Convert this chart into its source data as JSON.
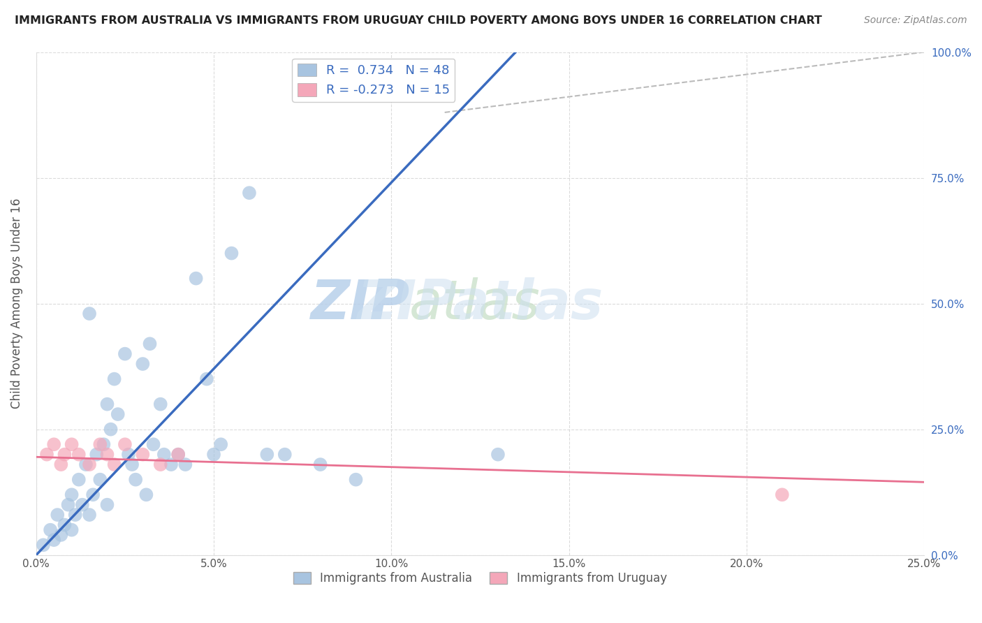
{
  "title": "IMMIGRANTS FROM AUSTRALIA VS IMMIGRANTS FROM URUGUAY CHILD POVERTY AMONG BOYS UNDER 16 CORRELATION CHART",
  "source": "Source: ZipAtlas.com",
  "ylabel": "Child Poverty Among Boys Under 16",
  "xlim": [
    0.0,
    0.25
  ],
  "ylim": [
    0.0,
    1.0
  ],
  "xticks": [
    0.0,
    0.05,
    0.1,
    0.15,
    0.2,
    0.25
  ],
  "yticks": [
    0.0,
    0.25,
    0.5,
    0.75,
    1.0
  ],
  "xticklabels": [
    "0.0%",
    "5.0%",
    "10.0%",
    "15.0%",
    "20.0%",
    "25.0%"
  ],
  "yticklabels": [
    "",
    "",
    "",
    "",
    ""
  ],
  "yticklabels_right": [
    "0.0%",
    "25.0%",
    "50.0%",
    "75.0%",
    "100.0%"
  ],
  "australia_R": 0.734,
  "australia_N": 48,
  "uruguay_R": -0.273,
  "uruguay_N": 15,
  "australia_color": "#a8c4e0",
  "uruguay_color": "#f4a7b9",
  "australia_line_color": "#3a6bbf",
  "uruguay_line_color": "#e87090",
  "watermark_color": "#ccdff0",
  "background_color": "#ffffff",
  "grid_color": "#cccccc",
  "legend_text_color": "#3a6bbf",
  "aus_line_x0": 0.0,
  "aus_line_y0": 0.0,
  "aus_line_x1": 0.135,
  "aus_line_y1": 1.0,
  "uru_line_x0": 0.0,
  "uru_line_y0": 0.195,
  "uru_line_x1": 0.25,
  "uru_line_y1": 0.145,
  "dashed_line_x0": 0.115,
  "dashed_line_y0": 0.88,
  "dashed_line_x1": 0.25,
  "dashed_line_y1": 1.0,
  "australia_x": [
    0.002,
    0.004,
    0.005,
    0.006,
    0.007,
    0.008,
    0.009,
    0.01,
    0.01,
    0.011,
    0.012,
    0.013,
    0.014,
    0.015,
    0.015,
    0.016,
    0.017,
    0.018,
    0.019,
    0.02,
    0.02,
    0.021,
    0.022,
    0.023,
    0.025,
    0.026,
    0.027,
    0.028,
    0.03,
    0.031,
    0.032,
    0.033,
    0.035,
    0.036,
    0.038,
    0.04,
    0.042,
    0.045,
    0.048,
    0.05,
    0.052,
    0.055,
    0.06,
    0.065,
    0.07,
    0.08,
    0.09,
    0.13
  ],
  "australia_y": [
    0.02,
    0.05,
    0.03,
    0.08,
    0.04,
    0.06,
    0.1,
    0.12,
    0.05,
    0.08,
    0.15,
    0.1,
    0.18,
    0.48,
    0.08,
    0.12,
    0.2,
    0.15,
    0.22,
    0.1,
    0.3,
    0.25,
    0.35,
    0.28,
    0.4,
    0.2,
    0.18,
    0.15,
    0.38,
    0.12,
    0.42,
    0.22,
    0.3,
    0.2,
    0.18,
    0.2,
    0.18,
    0.55,
    0.35,
    0.2,
    0.22,
    0.6,
    0.72,
    0.2,
    0.2,
    0.18,
    0.15,
    0.2
  ],
  "uruguay_x": [
    0.003,
    0.005,
    0.007,
    0.008,
    0.01,
    0.012,
    0.015,
    0.018,
    0.02,
    0.022,
    0.025,
    0.03,
    0.035,
    0.04,
    0.21
  ],
  "uruguay_y": [
    0.2,
    0.22,
    0.18,
    0.2,
    0.22,
    0.2,
    0.18,
    0.22,
    0.2,
    0.18,
    0.22,
    0.2,
    0.18,
    0.2,
    0.12
  ]
}
